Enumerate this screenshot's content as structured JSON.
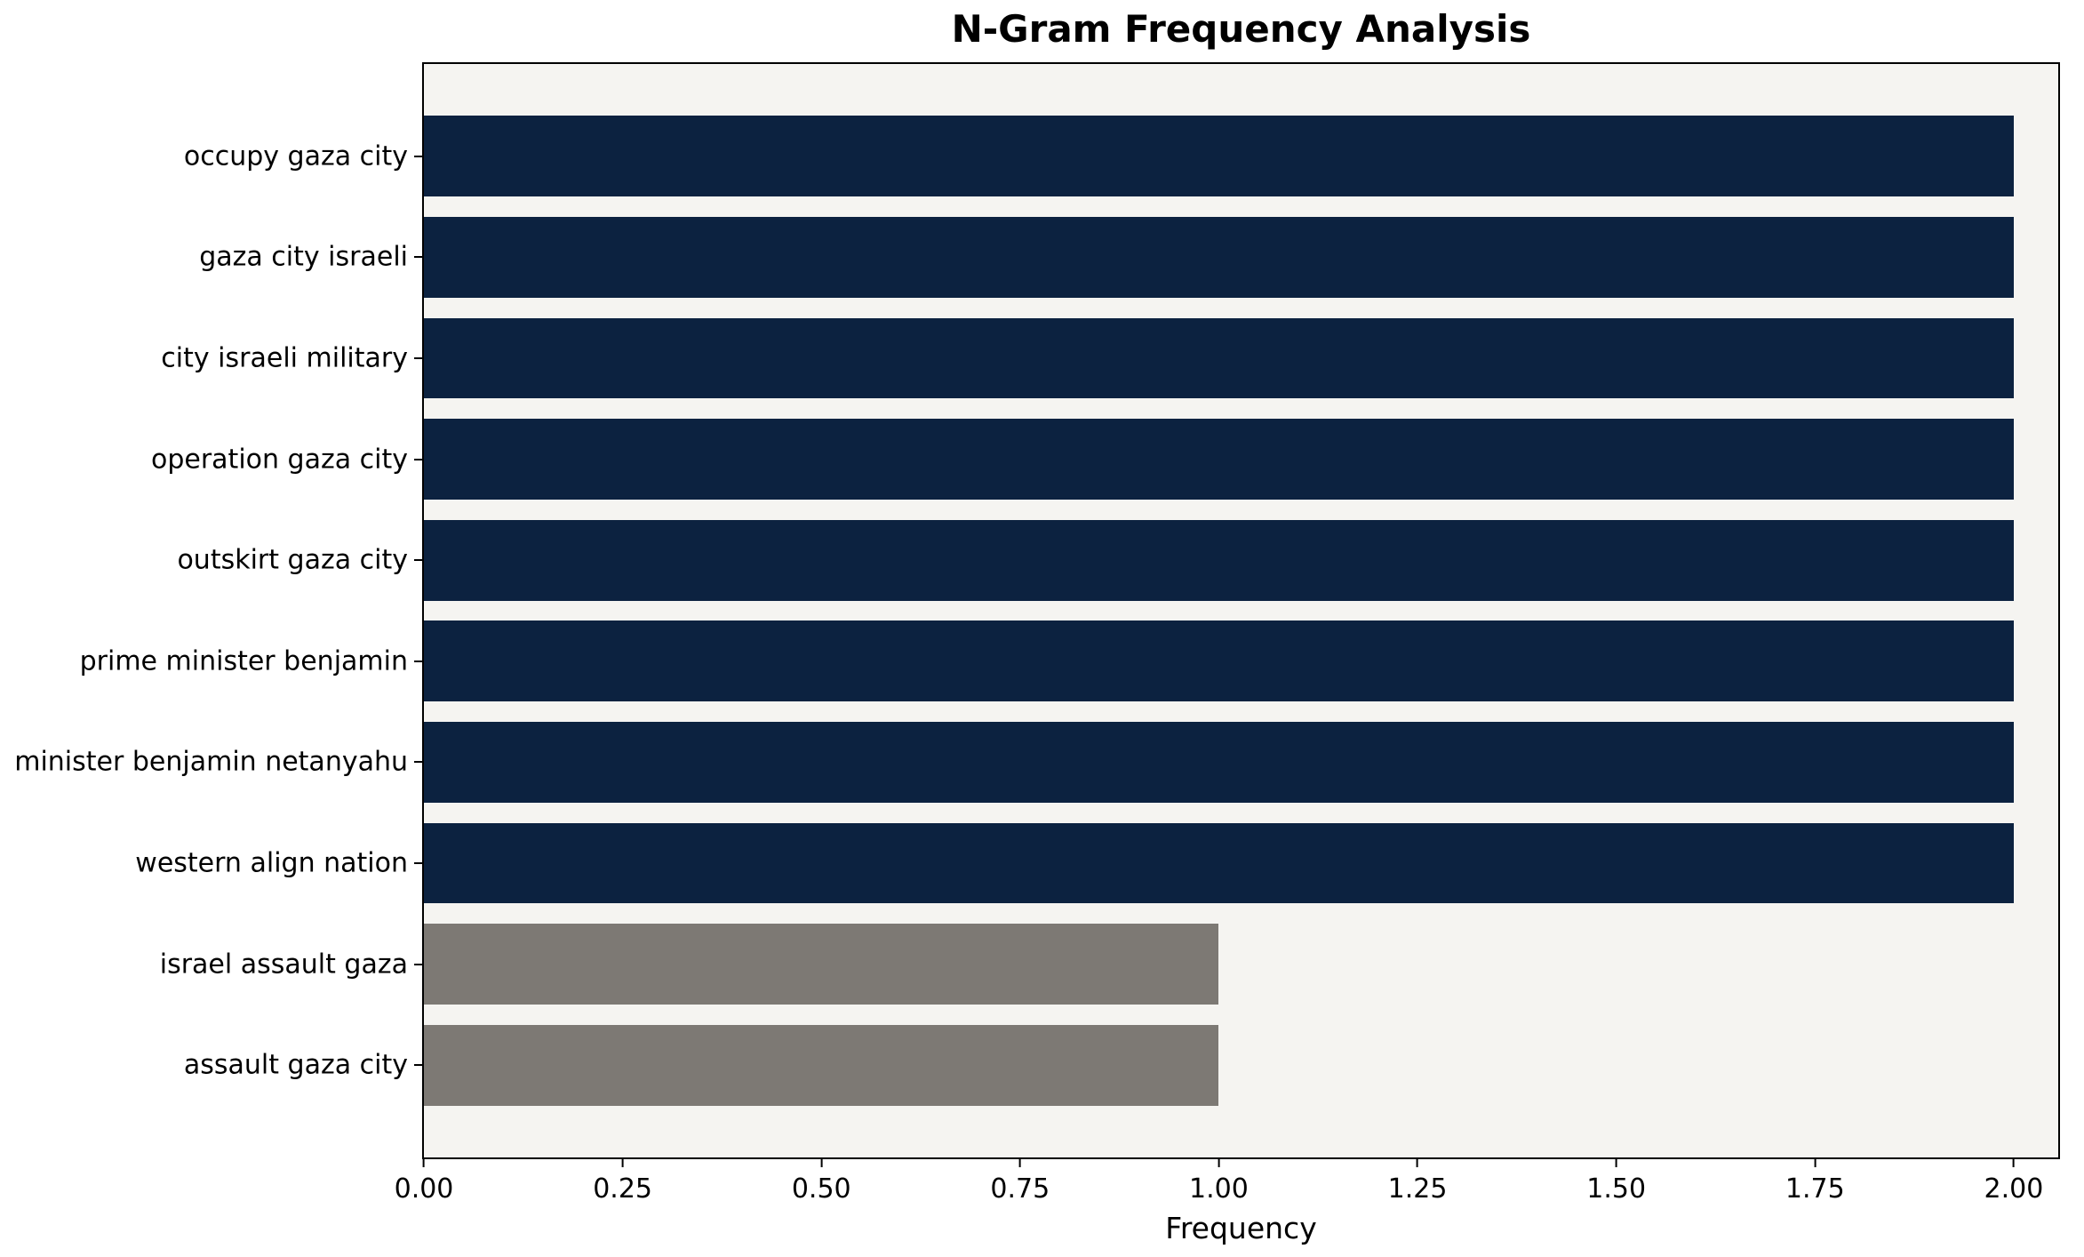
{
  "chart_data": {
    "type": "bar",
    "orientation": "horizontal",
    "title": "N-Gram Frequency Analysis",
    "xlabel": "Frequency",
    "ylabel": "",
    "categories": [
      "occupy gaza city",
      "gaza city israeli",
      "city israeli military",
      "operation gaza city",
      "outskirt gaza city",
      "prime minister benjamin",
      "minister benjamin netanyahu",
      "western align nation",
      "israel assault gaza",
      "assault gaza city"
    ],
    "values": [
      2,
      2,
      2,
      2,
      2,
      2,
      2,
      2,
      1,
      1
    ],
    "colors": [
      "#0c2240",
      "#0c2240",
      "#0c2240",
      "#0c2240",
      "#0c2240",
      "#0c2240",
      "#0c2240",
      "#0c2240",
      "#7d7974",
      "#7d7974"
    ],
    "xlim": [
      0,
      2.056
    ],
    "xticks": [
      0,
      0.25,
      0.5,
      0.75,
      1,
      1.25,
      1.5,
      1.75,
      2
    ],
    "xtick_labels": [
      "0.00",
      "0.25",
      "0.50",
      "0.75",
      "1.00",
      "1.25",
      "1.50",
      "1.75",
      "2.00"
    ],
    "plot_background": "#f5f4f1",
    "grid": false,
    "legend": null
  }
}
